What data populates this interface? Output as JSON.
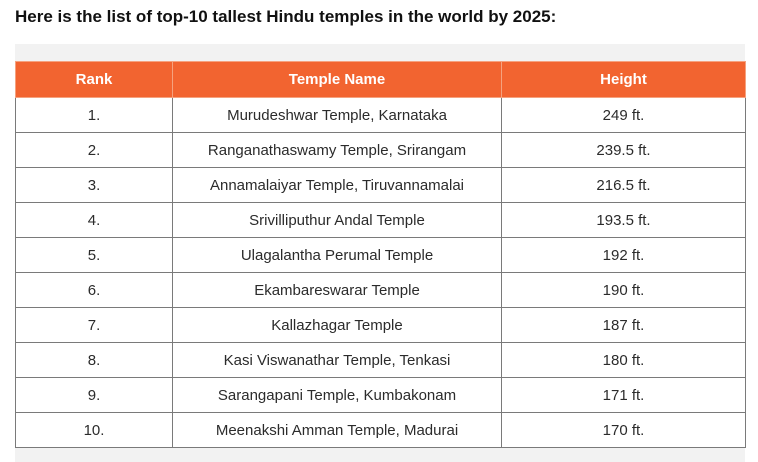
{
  "heading": "Here is the list of top-10 tallest Hindu temples in the world by 2025:",
  "table": {
    "header_color": "#f26430",
    "columns": [
      "Rank",
      "Temple Name",
      "Height"
    ],
    "rows": [
      {
        "rank": "1.",
        "name": "Murudeshwar Temple, Karnataka",
        "height": "249 ft."
      },
      {
        "rank": "2.",
        "name": "Ranganathaswamy Temple, Srirangam",
        "height": "239.5 ft."
      },
      {
        "rank": "3.",
        "name": "Annamalaiyar Temple, Tiruvannamalai",
        "height": "216.5 ft."
      },
      {
        "rank": "4.",
        "name": "Srivilliputhur Andal Temple",
        "height": "193.5 ft."
      },
      {
        "rank": "5.",
        "name": "Ulagalantha Perumal Temple",
        "height": "192 ft."
      },
      {
        "rank": "6.",
        "name": "Ekambareswarar Temple",
        "height": "190 ft."
      },
      {
        "rank": "7.",
        "name": "Kallazhagar Temple",
        "height": "187 ft."
      },
      {
        "rank": "8.",
        "name": "Kasi Viswanathar Temple, Tenkasi",
        "height": "180 ft."
      },
      {
        "rank": "9.",
        "name": "Sarangapani Temple, Kumbakonam",
        "height": "171 ft."
      },
      {
        "rank": "10.",
        "name": "Meenakshi Amman Temple, Madurai",
        "height": "170 ft."
      }
    ]
  }
}
